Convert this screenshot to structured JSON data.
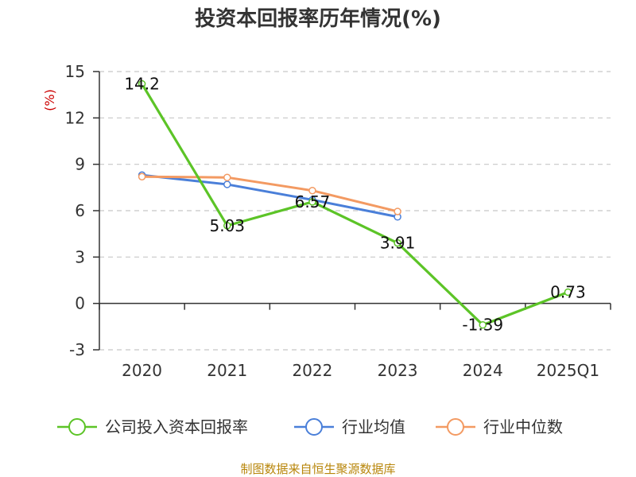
{
  "chart_data": {
    "type": "line",
    "title": "投资本回报率历年情况(%)",
    "ylabel": "(%)",
    "xlabel": "",
    "categories": [
      "2020",
      "2021",
      "2022",
      "2023",
      "2024",
      "2025Q1"
    ],
    "ylim": [
      -3,
      15
    ],
    "yticks": [
      -3,
      0,
      3,
      6,
      9,
      12,
      15
    ],
    "grid": true,
    "series": [
      {
        "name": "公司投入资本回报率",
        "color": "#5cc427",
        "values": [
          14.2,
          5.03,
          6.57,
          3.91,
          -1.39,
          0.73
        ],
        "labels": [
          "14.2",
          "5.03",
          "6.57",
          "3.91",
          "-1.39",
          "0.73"
        ]
      },
      {
        "name": "行业均值",
        "color": "#4a7fd9",
        "values": [
          8.3,
          7.7,
          6.7,
          5.6,
          null,
          null
        ]
      },
      {
        "name": "行业中位数",
        "color": "#f39a62",
        "values": [
          8.2,
          8.15,
          7.3,
          5.95,
          null,
          null
        ]
      }
    ],
    "legend_position": "bottom"
  },
  "source": "制图数据来自恒生聚源数据库"
}
